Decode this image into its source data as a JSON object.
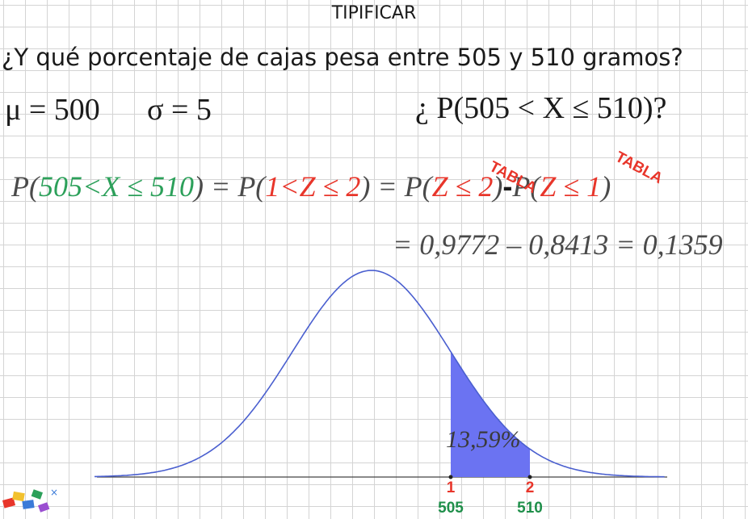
{
  "title": "TIPIFICAR",
  "question": "¿Y qué porcentaje de cajas pesa entre 505 y 510 gramos?",
  "params": {
    "mu": "μ = 500",
    "sigma": "σ = 5",
    "prob_question": "¿ P(505 < X ≤ 510)?"
  },
  "equation1": {
    "p_open": "P(",
    "x_range": "505<X ≤ 510",
    "mid1": ") = P(",
    "z_range": "1<Z ≤ 2",
    "mid2": ") = P(",
    "z_le2": "Z ≤ 2",
    "mid3": ")",
    "minus": "-",
    "p2_open": "P(",
    "z_le1": "Z ≤ 1",
    "close": ")"
  },
  "equation2": "= 0,9772 – 0,8413 = 0,1359",
  "tabla_labels": [
    "TABLA",
    "TABLA"
  ],
  "normal_curve": {
    "mean": 500,
    "sd": 5,
    "shaded_from": 505,
    "shaded_to": 510,
    "shaded_label": "13,59%",
    "z_ticks": [
      "1",
      "2"
    ],
    "x_ticks": [
      "505",
      "510"
    ],
    "curve_color": "#4a5fcf",
    "fill_color": "#6b73f2"
  },
  "colors": {
    "green": "#2ca05a",
    "red": "#e8352a"
  },
  "logo_icon": "colorful-blocks-logo"
}
